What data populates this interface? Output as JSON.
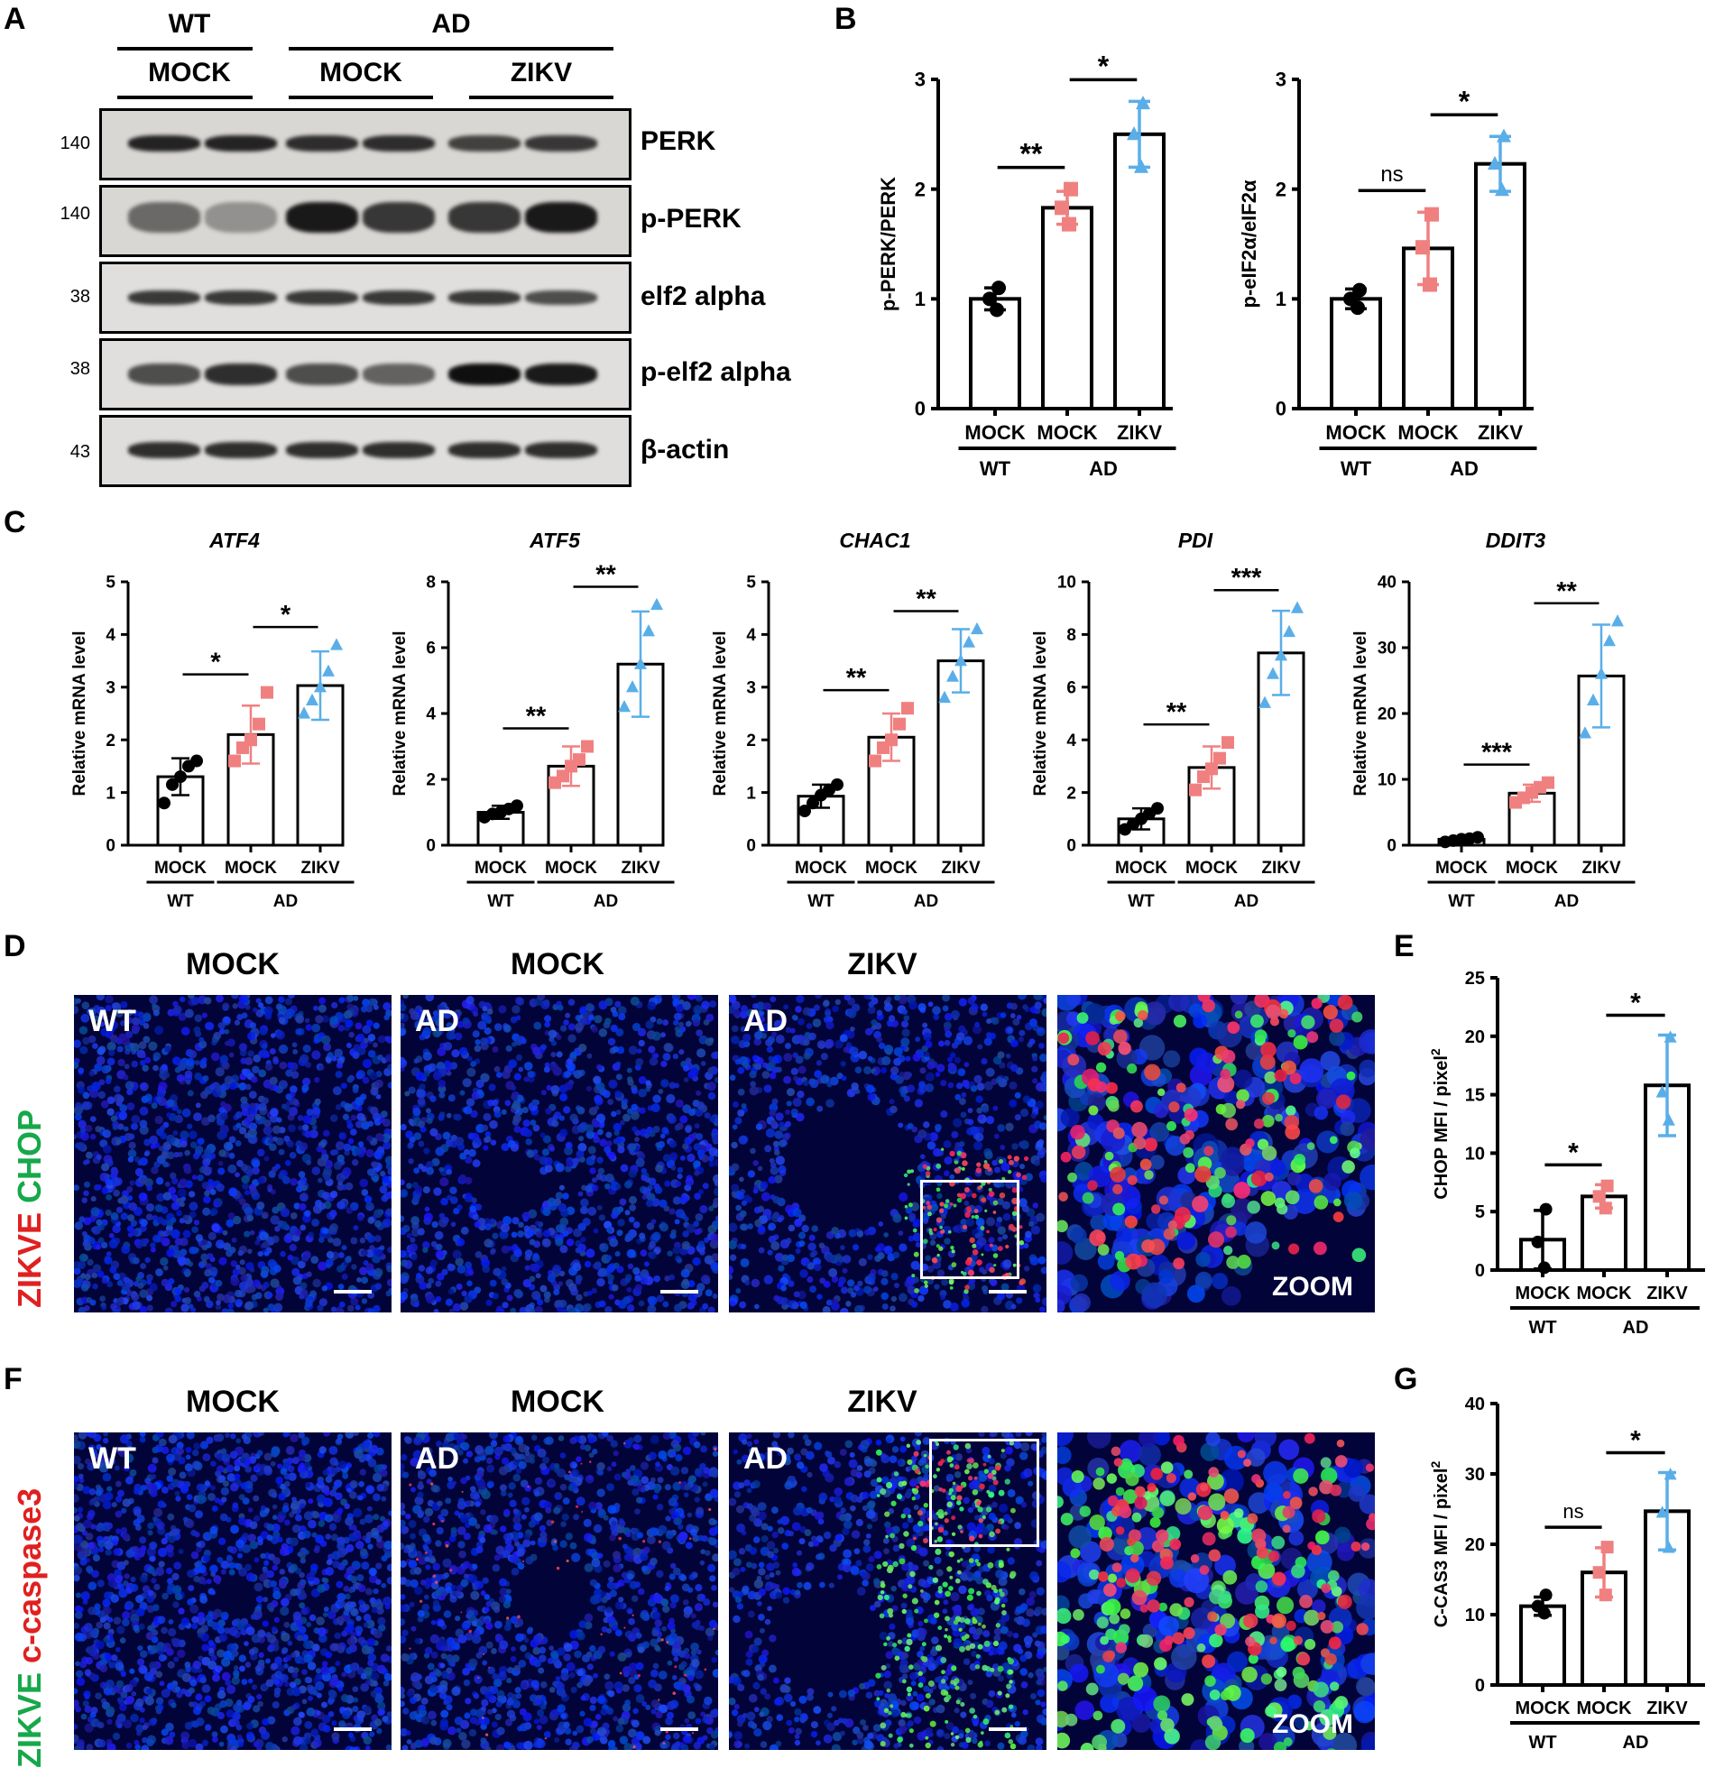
{
  "panels": {
    "A": "A",
    "B": "B",
    "C": "C",
    "D": "D",
    "E": "E",
    "F": "F",
    "G": "G"
  },
  "western": {
    "group_top": {
      "wt": "WT",
      "ad": "AD"
    },
    "group_sub": {
      "mock1": "MOCK",
      "mock2": "MOCK",
      "zikv": "ZIKV"
    },
    "blots": [
      {
        "label": "PERK",
        "mw": "140"
      },
      {
        "label": "p-PERK",
        "mw": "140"
      },
      {
        "label": "elf2 alpha",
        "mw": "38"
      },
      {
        "label": "p-elf2 alpha",
        "mw": "38"
      },
      {
        "label": "β-actin",
        "mw": "43"
      }
    ]
  },
  "colors": {
    "wt": "#000000",
    "ad_mock": "#f08080",
    "zikv": "#5aaee8",
    "nuclei": "#1a2fd6"
  },
  "microscopy": {
    "D": {
      "side_label_a": "ZIKVE",
      "side_label_b": "CHOP",
      "cols": [
        {
          "header": "MOCK",
          "tag": "WT"
        },
        {
          "header": "MOCK",
          "tag": "AD"
        },
        {
          "header": "ZIKV",
          "tag": "AD"
        },
        {
          "header": "",
          "tag": "ZOOM"
        }
      ]
    },
    "F": {
      "side_label_a": "ZIKVE",
      "side_label_b": "c-caspase3",
      "cols": [
        {
          "header": "MOCK",
          "tag": "WT"
        },
        {
          "header": "MOCK",
          "tag": "AD"
        },
        {
          "header": "ZIKV",
          "tag": "AD"
        },
        {
          "header": "",
          "tag": "ZOOM"
        }
      ]
    }
  },
  "chart_data": [
    {
      "id": "B1",
      "type": "bar",
      "title": "",
      "ylabel": "p-PERK/PERK",
      "ylim": [
        0,
        3
      ],
      "yticks": [
        0,
        1,
        2,
        3
      ],
      "categories": [
        "MOCK",
        "MOCK",
        "ZIKV"
      ],
      "groups": [
        {
          "label": "WT",
          "span": [
            0,
            0
          ]
        },
        {
          "label": "AD",
          "span": [
            1,
            2
          ]
        }
      ],
      "values": [
        1.0,
        1.83,
        2.5
      ],
      "errors": [
        0.1,
        0.15,
        0.3
      ],
      "points": [
        [
          0.9,
          1.0,
          1.1
        ],
        [
          1.68,
          1.83,
          2.0
        ],
        [
          2.2,
          2.5,
          2.78
        ]
      ],
      "sig": [
        {
          "from": 0,
          "to": 1,
          "label": "**"
        },
        {
          "from": 1,
          "to": 2,
          "label": "*"
        }
      ]
    },
    {
      "id": "B2",
      "type": "bar",
      "title": "",
      "ylabel": "p-eIF2α/eIF2α",
      "ylim": [
        0,
        3
      ],
      "yticks": [
        0,
        1,
        2,
        3
      ],
      "categories": [
        "MOCK",
        "MOCK",
        "ZIKV"
      ],
      "groups": [
        {
          "label": "WT",
          "span": [
            0,
            0
          ]
        },
        {
          "label": "AD",
          "span": [
            1,
            2
          ]
        }
      ],
      "values": [
        1.0,
        1.46,
        2.23
      ],
      "errors": [
        0.09,
        0.33,
        0.25
      ],
      "points": [
        [
          0.92,
          1.0,
          1.08
        ],
        [
          1.13,
          1.47,
          1.77
        ],
        [
          1.99,
          2.23,
          2.48
        ]
      ],
      "sig": [
        {
          "from": 0,
          "to": 1,
          "label": "ns"
        },
        {
          "from": 1,
          "to": 2,
          "label": "*"
        }
      ]
    },
    {
      "id": "C1",
      "type": "bar",
      "title": "ATF4",
      "ylabel": "Relative mRNA level",
      "ylim": [
        0,
        5
      ],
      "yticks": [
        0,
        1,
        2,
        3,
        4,
        5
      ],
      "categories": [
        "MOCK",
        "MOCK",
        "ZIKV"
      ],
      "groups": [
        {
          "label": "WT",
          "span": [
            0,
            0
          ]
        },
        {
          "label": "AD",
          "span": [
            1,
            2
          ]
        }
      ],
      "values": [
        1.3,
        2.1,
        3.03
      ],
      "errors": [
        0.35,
        0.55,
        0.65
      ],
      "points": [
        [
          0.8,
          1.15,
          1.3,
          1.5,
          1.6
        ],
        [
          1.6,
          1.85,
          2.0,
          2.3,
          2.9
        ],
        [
          2.5,
          2.75,
          3.0,
          3.3,
          3.8
        ]
      ],
      "sig": [
        {
          "from": 0,
          "to": 1,
          "label": "*"
        },
        {
          "from": 1,
          "to": 2,
          "label": "*"
        }
      ]
    },
    {
      "id": "C2",
      "type": "bar",
      "title": "ATF5",
      "ylabel": "Relative mRNA level",
      "ylim": [
        0,
        8
      ],
      "yticks": [
        0,
        2,
        4,
        6,
        8
      ],
      "categories": [
        "MOCK",
        "MOCK",
        "ZIKV"
      ],
      "groups": [
        {
          "label": "WT",
          "span": [
            0,
            0
          ]
        },
        {
          "label": "AD",
          "span": [
            1,
            2
          ]
        }
      ],
      "values": [
        1.0,
        2.4,
        5.5
      ],
      "errors": [
        0.2,
        0.6,
        1.6
      ],
      "points": [
        [
          0.85,
          0.95,
          1.0,
          1.1,
          1.2
        ],
        [
          1.9,
          2.1,
          2.4,
          2.6,
          3.0
        ],
        [
          4.2,
          4.8,
          5.5,
          6.5,
          7.3
        ]
      ],
      "sig": [
        {
          "from": 0,
          "to": 1,
          "label": "**"
        },
        {
          "from": 1,
          "to": 2,
          "label": "**"
        }
      ]
    },
    {
      "id": "C3",
      "type": "bar",
      "title": "CHAC1",
      "ylabel": "Relative mRNA level",
      "ylim": [
        0,
        5
      ],
      "yticks": [
        0,
        1,
        2,
        3,
        4,
        5
      ],
      "categories": [
        "MOCK",
        "MOCK",
        "ZIKV"
      ],
      "groups": [
        {
          "label": "WT",
          "span": [
            0,
            0
          ]
        },
        {
          "label": "AD",
          "span": [
            1,
            2
          ]
        }
      ],
      "values": [
        0.93,
        2.05,
        3.5
      ],
      "errors": [
        0.22,
        0.45,
        0.6
      ],
      "points": [
        [
          0.65,
          0.8,
          0.95,
          1.05,
          1.15
        ],
        [
          1.6,
          1.85,
          2.0,
          2.3,
          2.6
        ],
        [
          2.8,
          3.2,
          3.5,
          3.85,
          4.1
        ]
      ],
      "sig": [
        {
          "from": 0,
          "to": 1,
          "label": "**"
        },
        {
          "from": 1,
          "to": 2,
          "label": "**"
        }
      ]
    },
    {
      "id": "C4",
      "type": "bar",
      "title": "PDI",
      "ylabel": "Relative mRNA level",
      "ylim": [
        0,
        10
      ],
      "yticks": [
        0,
        2,
        4,
        6,
        8,
        10
      ],
      "categories": [
        "MOCK",
        "MOCK",
        "ZIKV"
      ],
      "groups": [
        {
          "label": "WT",
          "span": [
            0,
            0
          ]
        },
        {
          "label": "AD",
          "span": [
            1,
            2
          ]
        }
      ],
      "values": [
        1.0,
        2.95,
        7.3
      ],
      "errors": [
        0.4,
        0.8,
        1.6
      ],
      "points": [
        [
          0.6,
          0.8,
          1.0,
          1.2,
          1.4
        ],
        [
          2.1,
          2.6,
          2.9,
          3.3,
          3.9
        ],
        [
          5.4,
          6.5,
          7.2,
          8.1,
          9.0
        ]
      ],
      "sig": [
        {
          "from": 0,
          "to": 1,
          "label": "**"
        },
        {
          "from": 1,
          "to": 2,
          "label": "***"
        }
      ]
    },
    {
      "id": "C5",
      "type": "bar",
      "title": "DDIT3",
      "ylabel": "Relative mRNA level",
      "ylim": [
        0,
        40
      ],
      "yticks": [
        0,
        10,
        20,
        30,
        40
      ],
      "categories": [
        "MOCK",
        "MOCK",
        "ZIKV"
      ],
      "groups": [
        {
          "label": "WT",
          "span": [
            0,
            0
          ]
        },
        {
          "label": "AD",
          "span": [
            1,
            2
          ]
        }
      ],
      "values": [
        0.9,
        7.9,
        25.7
      ],
      "errors": [
        0.3,
        1.3,
        7.8
      ],
      "points": [
        [
          0.5,
          0.7,
          0.9,
          1.0,
          1.2
        ],
        [
          6.5,
          7.2,
          8.0,
          8.8,
          9.5
        ],
        [
          17,
          22,
          26,
          31,
          34
        ]
      ],
      "sig": [
        {
          "from": 0,
          "to": 1,
          "label": "***"
        },
        {
          "from": 1,
          "to": 2,
          "label": "**"
        }
      ]
    },
    {
      "id": "E",
      "type": "bar",
      "title": "",
      "ylabel": "CHOP MFI / pixel²",
      "ylim": [
        0,
        25
      ],
      "yticks": [
        0,
        5,
        10,
        15,
        20,
        25
      ],
      "categories": [
        "MOCK",
        "MOCK",
        "ZIKV"
      ],
      "groups": [
        {
          "label": "WT",
          "span": [
            0,
            0
          ]
        },
        {
          "label": "AD",
          "span": [
            1,
            2
          ]
        }
      ],
      "values": [
        2.6,
        6.3,
        15.8
      ],
      "errors": [
        2.5,
        1.0,
        4.3
      ],
      "points": [
        [
          0.2,
          2.4,
          5.2
        ],
        [
          5.3,
          6.3,
          7.2
        ],
        [
          12.8,
          15.2,
          19.9
        ]
      ],
      "sig": [
        {
          "from": 0,
          "to": 1,
          "label": "*"
        },
        {
          "from": 1,
          "to": 2,
          "label": "*"
        }
      ]
    },
    {
      "id": "G",
      "type": "bar",
      "title": "",
      "ylabel": "C-CAS3 MFI / pixel²",
      "ylim": [
        0,
        40
      ],
      "yticks": [
        0,
        10,
        20,
        30,
        40
      ],
      "categories": [
        "MOCK",
        "MOCK",
        "ZIKV"
      ],
      "groups": [
        {
          "label": "WT",
          "span": [
            0,
            0
          ]
        },
        {
          "label": "AD",
          "span": [
            1,
            2
          ]
        }
      ],
      "values": [
        11.2,
        16.0,
        24.7
      ],
      "errors": [
        1.3,
        3.5,
        5.5
      ],
      "points": [
        [
          10.2,
          11.2,
          12.8
        ],
        [
          12.8,
          16.0,
          19.6
        ],
        [
          19.5,
          24.5,
          29.9
        ]
      ],
      "sig": [
        {
          "from": 0,
          "to": 1,
          "label": "ns"
        },
        {
          "from": 1,
          "to": 2,
          "label": "*"
        }
      ]
    }
  ]
}
